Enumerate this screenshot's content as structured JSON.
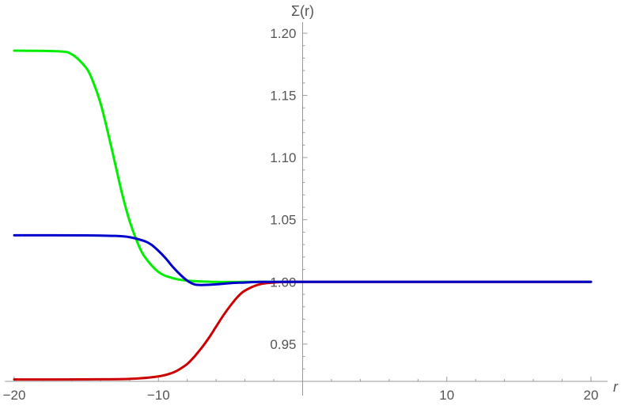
{
  "chart_data": {
    "type": "line",
    "title": "",
    "xlabel": "r",
    "ylabel": "Σ(r)",
    "xlim": [
      -20,
      20
    ],
    "ylim": [
      0.92,
      1.2
    ],
    "x_axis_crossing_y": 0.92,
    "y_axis_crossing_x": 0,
    "x_ticks": [
      {
        "value": -20,
        "label": "−20"
      },
      {
        "value": -10,
        "label": "−10"
      },
      {
        "value": 10,
        "label": "10"
      },
      {
        "value": 20,
        "label": "20"
      }
    ],
    "y_ticks": [
      {
        "value": 0.95,
        "label": "0.95"
      },
      {
        "value": 1.0,
        "label": "1.00"
      },
      {
        "value": 1.05,
        "label": "1.05"
      },
      {
        "value": 1.1,
        "label": "1.10"
      },
      {
        "value": 1.15,
        "label": "1.15"
      },
      {
        "value": 1.2,
        "label": "1.20"
      }
    ],
    "grid": false,
    "legend": "none",
    "series": [
      {
        "color": "#00ee00",
        "x": [
          -20,
          -17,
          -16,
          -15,
          -14.5,
          -14,
          -13.5,
          -13,
          -12.5,
          -12,
          -11.5,
          -11,
          -10,
          -9,
          -8,
          -6,
          -4,
          -2,
          0,
          5,
          10,
          15,
          20
        ],
        "y": [
          1.186,
          1.1855,
          1.183,
          1.172,
          1.16,
          1.143,
          1.12,
          1.095,
          1.07,
          1.049,
          1.033,
          1.021,
          1.008,
          1.003,
          1.001,
          1.0,
          1.0,
          1.0,
          1.0,
          1.0,
          1.0,
          1.0,
          1.0
        ]
      },
      {
        "color": "#cc0000",
        "x": [
          -20,
          -15,
          -12,
          -10,
          -9,
          -8.5,
          -8,
          -7.5,
          -7,
          -6.5,
          -6,
          -5.5,
          -5,
          -4.5,
          -4,
          -3,
          -2,
          -1,
          0,
          5,
          10,
          15,
          20
        ],
        "y": [
          0.9215,
          0.9216,
          0.922,
          0.924,
          0.927,
          0.93,
          0.934,
          0.94,
          0.947,
          0.955,
          0.964,
          0.973,
          0.981,
          0.988,
          0.993,
          0.998,
          0.9995,
          1.0,
          1.0,
          1.0,
          1.0,
          1.0,
          1.0
        ]
      },
      {
        "color": "#0000cc",
        "x": [
          -20,
          -15,
          -13,
          -12,
          -11,
          -10.5,
          -10,
          -9.5,
          -9,
          -8.5,
          -8,
          -7.5,
          -7,
          -6,
          -5,
          -4,
          -3,
          -2,
          0,
          5,
          10,
          15,
          20
        ],
        "y": [
          1.0375,
          1.0374,
          1.037,
          1.036,
          1.033,
          1.03,
          1.025,
          1.019,
          1.012,
          1.006,
          1.001,
          0.998,
          0.9975,
          0.998,
          0.999,
          0.9995,
          1.0,
          1.0,
          1.0,
          1.0,
          1.0,
          1.0,
          1.0
        ]
      }
    ]
  }
}
